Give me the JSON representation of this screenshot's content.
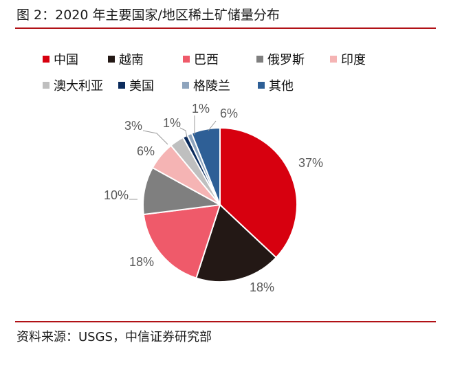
{
  "figure": {
    "title": "图 2：2020 年主要国家/地区稀土矿储量分布",
    "source": "资料来源：USGS，中信证券研究部"
  },
  "chart_data": {
    "type": "pie",
    "title": "2020 年主要国家/地区稀土矿储量分布",
    "legend_placement": "top",
    "start": "12-o'clock",
    "direction": "clockwise",
    "slices": [
      {
        "name": "中国",
        "value": 37,
        "label": "37%",
        "color": "#d7000f"
      },
      {
        "name": "越南",
        "value": 18,
        "label": "18%",
        "color": "#231815"
      },
      {
        "name": "巴西",
        "value": 18,
        "label": "18%",
        "color": "#ef5a6a"
      },
      {
        "name": "俄罗斯",
        "value": 10,
        "label": "10%",
        "color": "#7f7f7f"
      },
      {
        "name": "印度",
        "value": 6,
        "label": "6%",
        "color": "#f5b4b4"
      },
      {
        "name": "澳大利亚",
        "value": 3,
        "label": "3%",
        "color": "#bfbfbf"
      },
      {
        "name": "美国",
        "value": 1,
        "label": "1%",
        "color": "#0b2b5c"
      },
      {
        "name": "格陵兰",
        "value": 1,
        "label": "1%",
        "color": "#8ea4bd"
      },
      {
        "name": "其他",
        "value": 6,
        "label": "6%",
        "color": "#2e5f96"
      }
    ]
  }
}
